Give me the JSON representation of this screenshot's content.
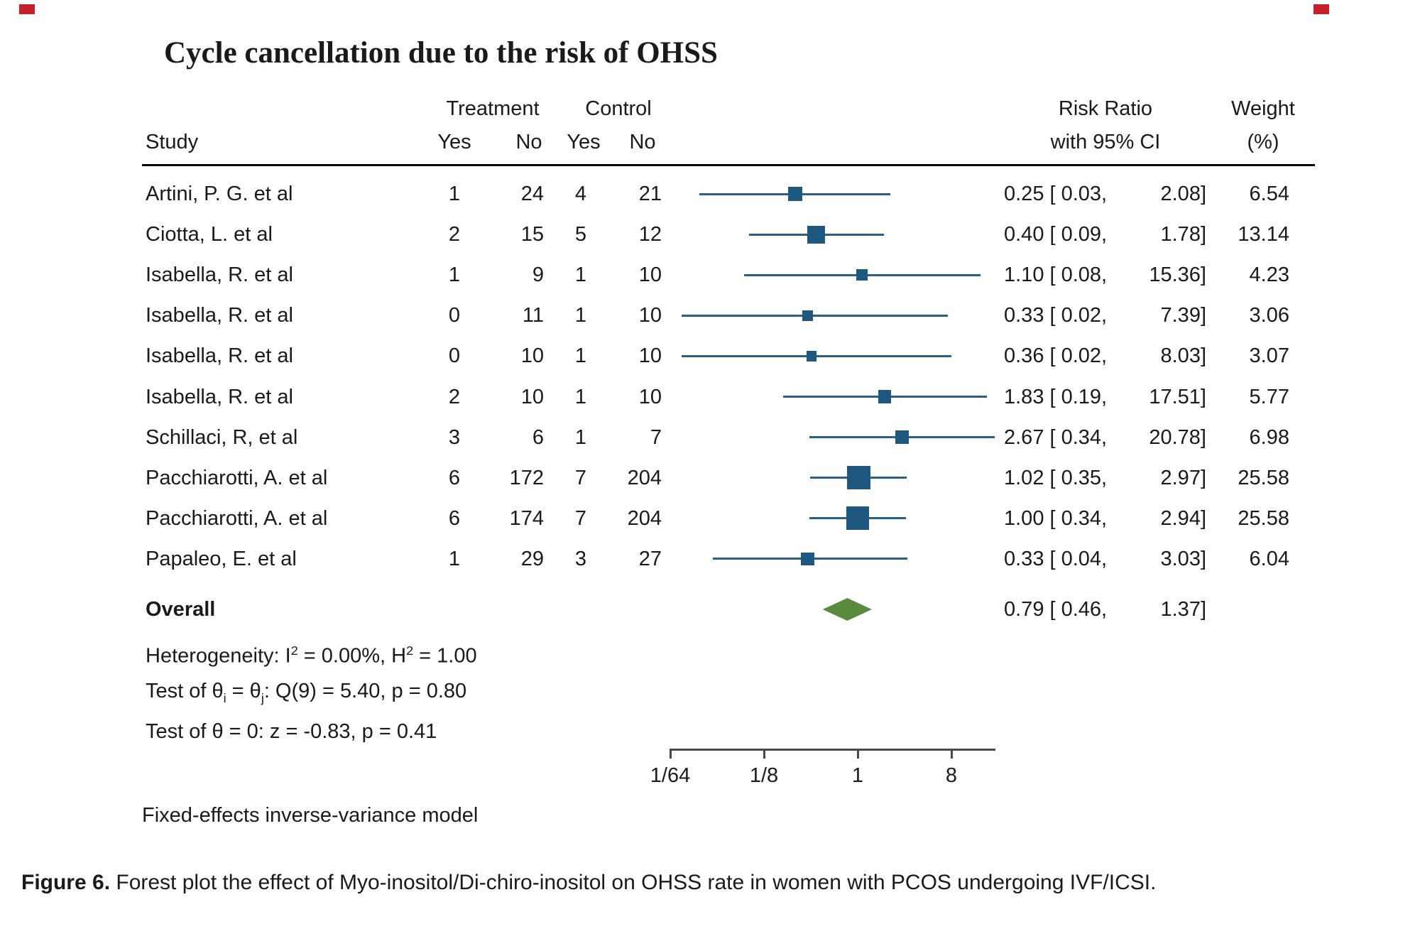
{
  "title": "Cycle cancellation due to the risk of OHSS",
  "decorations": {
    "corner_marker_color": "#c8202a"
  },
  "colors": {
    "marker_blue": "#1e5880",
    "ci_line_blue": "#2a5e85",
    "diamond_green": "#5a8a3c",
    "axis_gray": "#484848",
    "text": "#1a1a1a"
  },
  "header": {
    "study": "Study",
    "treatment": "Treatment",
    "control": "Control",
    "t_yes": "Yes",
    "t_no": "No",
    "c_yes": "Yes",
    "c_no": "No",
    "risk_ratio": "Risk Ratio",
    "with_ci": "with 95% CI",
    "weight": "Weight",
    "weight_pct": "(%)"
  },
  "table": {
    "rows": [
      {
        "study": "Artini, P. G. et al",
        "t_yes": "1",
        "t_no": "24",
        "c_yes": "4",
        "c_no": "21",
        "rr_left": "0.25 [ 0.03,",
        "rr_right": "2.08]",
        "weight": "6.54"
      },
      {
        "study": "Ciotta, L. et al",
        "t_yes": "2",
        "t_no": "15",
        "c_yes": "5",
        "c_no": "12",
        "rr_left": "0.40 [ 0.09,",
        "rr_right": "1.78]",
        "weight": "13.14"
      },
      {
        "study": "Isabella, R. et al",
        "t_yes": "1",
        "t_no": "9",
        "c_yes": "1",
        "c_no": "10",
        "rr_left": "1.10 [ 0.08,",
        "rr_right": "15.36]",
        "weight": "4.23"
      },
      {
        "study": "Isabella, R. et al",
        "t_yes": "0",
        "t_no": "11",
        "c_yes": "1",
        "c_no": "10",
        "rr_left": "0.33 [ 0.02,",
        "rr_right": "7.39]",
        "weight": "3.06"
      },
      {
        "study": "Isabella, R. et al",
        "t_yes": "0",
        "t_no": "10",
        "c_yes": "1",
        "c_no": "10",
        "rr_left": "0.36 [ 0.02,",
        "rr_right": "8.03]",
        "weight": "3.07"
      },
      {
        "study": "Isabella, R. et al",
        "t_yes": "2",
        "t_no": "10",
        "c_yes": "1",
        "c_no": "10",
        "rr_left": "1.83 [ 0.19,",
        "rr_right": "17.51]",
        "weight": "5.77"
      },
      {
        "study": "Schillaci, R, et al",
        "t_yes": "3",
        "t_no": "6",
        "c_yes": "1",
        "c_no": "7",
        "rr_left": "2.67 [ 0.34,",
        "rr_right": "20.78]",
        "weight": "6.98"
      },
      {
        "study": "Pacchiarotti, A. et al",
        "t_yes": "6",
        "t_no": "172",
        "c_yes": "7",
        "c_no": "204",
        "rr_left": "1.02 [ 0.35,",
        "rr_right": "2.97]",
        "weight": "25.58"
      },
      {
        "study": "Pacchiarotti, A. et al",
        "t_yes": "6",
        "t_no": "174",
        "c_yes": "7",
        "c_no": "204",
        "rr_left": "1.00 [ 0.34,",
        "rr_right": "2.94]",
        "weight": "25.58"
      },
      {
        "study": "Papaleo, E. et al",
        "t_yes": "1",
        "t_no": "29",
        "c_yes": "3",
        "c_no": "27",
        "rr_left": "0.33 [ 0.04,",
        "rr_right": "3.03]",
        "weight": "6.04"
      }
    ]
  },
  "overall_row": {
    "label": "Overall",
    "rr_left": "0.79 [ 0.46,",
    "rr_right": "1.37]"
  },
  "stats": {
    "lines": [
      [
        {
          "t": "Heterogeneity: I"
        },
        {
          "t": "2",
          "sup": true
        },
        {
          "t": " = 0.00%, H"
        },
        {
          "t": "2",
          "sup": true
        },
        {
          "t": " = 1.00"
        }
      ],
      [
        {
          "t": "Test of θ"
        },
        {
          "t": "i",
          "sub": true
        },
        {
          "t": " = θ"
        },
        {
          "t": "j",
          "sub": true
        },
        {
          "t": ": Q(9) = 5.40, p = 0.80"
        }
      ],
      [
        {
          "t": "Test of θ = 0: z = -0.83, p = 0.41"
        }
      ]
    ]
  },
  "model_note": "Fixed-effects inverse-variance model",
  "caption": [
    {
      "t": "Figure 6.",
      "bold": true
    },
    {
      "t": " Forest plot the effect of Myo-inositol/Di-chiro-inositol on OHSS rate in women with PCOS undergoing IVF/ICSI."
    }
  ],
  "chart_data": {
    "type": "forest",
    "title": "Cycle cancellation due to the risk of OHSS",
    "effect_measure": "Risk Ratio with 95% CI",
    "model": "Fixed-effects inverse-variance model",
    "x_axis": {
      "scale": "log2",
      "ticks": [
        {
          "label": "1/64",
          "value": 0.015625
        },
        {
          "label": "1/8",
          "value": 0.125
        },
        {
          "label": "1",
          "value": 1
        },
        {
          "label": "8",
          "value": 8
        }
      ],
      "range_low": 0.015,
      "range_high": 21
    },
    "studies": [
      {
        "label": "Artini, P. G. et al",
        "treatment_yes": 1,
        "treatment_no": 24,
        "control_yes": 4,
        "control_no": 21,
        "rr": 0.25,
        "ci_low": 0.03,
        "ci_high": 2.08,
        "weight_pct": 6.54
      },
      {
        "label": "Ciotta, L. et al",
        "treatment_yes": 2,
        "treatment_no": 15,
        "control_yes": 5,
        "control_no": 12,
        "rr": 0.4,
        "ci_low": 0.09,
        "ci_high": 1.78,
        "weight_pct": 13.14
      },
      {
        "label": "Isabella, R. et al",
        "treatment_yes": 1,
        "treatment_no": 9,
        "control_yes": 1,
        "control_no": 10,
        "rr": 1.1,
        "ci_low": 0.08,
        "ci_high": 15.36,
        "weight_pct": 4.23
      },
      {
        "label": "Isabella, R. et al",
        "treatment_yes": 0,
        "treatment_no": 11,
        "control_yes": 1,
        "control_no": 10,
        "rr": 0.33,
        "ci_low": 0.02,
        "ci_high": 7.39,
        "weight_pct": 3.06
      },
      {
        "label": "Isabella, R. et al",
        "treatment_yes": 0,
        "treatment_no": 10,
        "control_yes": 1,
        "control_no": 10,
        "rr": 0.36,
        "ci_low": 0.02,
        "ci_high": 8.03,
        "weight_pct": 3.07
      },
      {
        "label": "Isabella, R. et al",
        "treatment_yes": 2,
        "treatment_no": 10,
        "control_yes": 1,
        "control_no": 10,
        "rr": 1.83,
        "ci_low": 0.19,
        "ci_high": 17.51,
        "weight_pct": 5.77
      },
      {
        "label": "Schillaci, R, et al",
        "treatment_yes": 3,
        "treatment_no": 6,
        "control_yes": 1,
        "control_no": 7,
        "rr": 2.67,
        "ci_low": 0.34,
        "ci_high": 20.78,
        "weight_pct": 6.98
      },
      {
        "label": "Pacchiarotti, A. et al",
        "treatment_yes": 6,
        "treatment_no": 172,
        "control_yes": 7,
        "control_no": 204,
        "rr": 1.02,
        "ci_low": 0.35,
        "ci_high": 2.97,
        "weight_pct": 25.58
      },
      {
        "label": "Pacchiarotti, A. et al",
        "treatment_yes": 6,
        "treatment_no": 174,
        "control_yes": 7,
        "control_no": 204,
        "rr": 1.0,
        "ci_low": 0.34,
        "ci_high": 2.94,
        "weight_pct": 25.58
      },
      {
        "label": "Papaleo, E. et al",
        "treatment_yes": 1,
        "treatment_no": 29,
        "control_yes": 3,
        "control_no": 27,
        "rr": 0.33,
        "ci_low": 0.04,
        "ci_high": 3.03,
        "weight_pct": 6.04
      }
    ],
    "overall": {
      "rr": 0.79,
      "ci_low": 0.46,
      "ci_high": 1.37
    },
    "heterogeneity": {
      "I2_pct": 0.0,
      "H2": 1.0
    },
    "test_homogeneity": {
      "Q_df": 9,
      "Q": 5.4,
      "p": 0.8
    },
    "test_overall": {
      "z": -0.83,
      "p": 0.41
    }
  }
}
